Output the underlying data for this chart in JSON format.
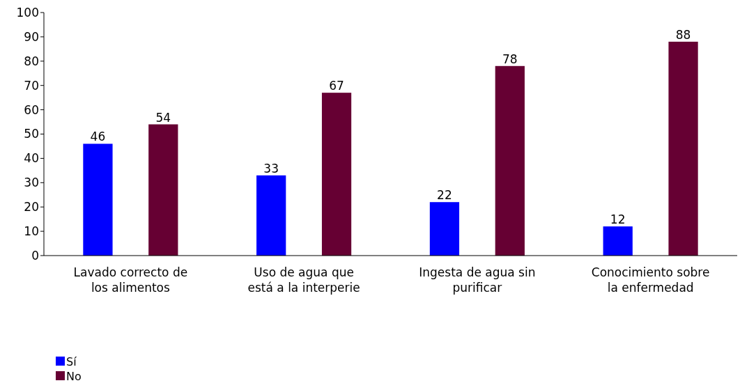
{
  "chart_data": {
    "type": "bar",
    "categories": [
      "Lavado correcto de los alimentos",
      "Uso de agua que está a la interperie",
      "Ingesta de agua sin purificar",
      "Conocimiento sobre la enfermedad"
    ],
    "series": [
      {
        "name": "Sí",
        "color": "#0000ff",
        "values": [
          46,
          33,
          22,
          12
        ]
      },
      {
        "name": "No",
        "color": "#660033",
        "values": [
          54,
          67,
          78,
          88
        ]
      }
    ],
    "ylim": [
      0,
      100
    ],
    "yticks": [
      0,
      10,
      20,
      30,
      40,
      50,
      60,
      70,
      80,
      90,
      100
    ],
    "data_labels": true,
    "legend": "bottom left",
    "grid": false
  }
}
